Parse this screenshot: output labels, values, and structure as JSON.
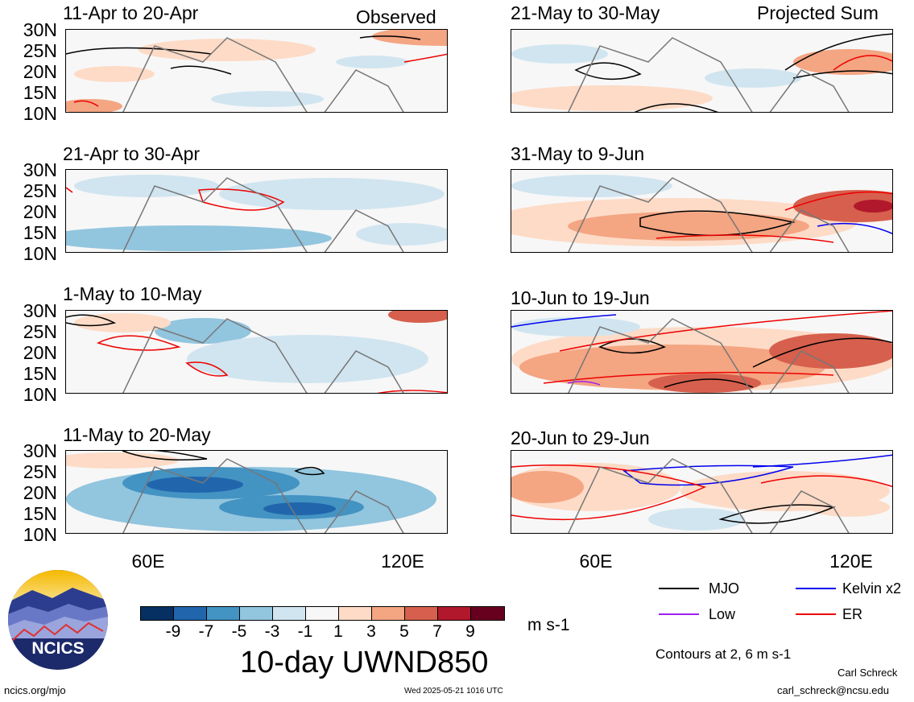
{
  "figure": {
    "title": "10-day UWND850",
    "observed_label": "Observed",
    "projected_label": "Projected Sum",
    "units": "m s-1",
    "contour_note": "Contours at 2, 6 m s-1"
  },
  "panels_left": [
    {
      "title": "11-Apr to 20-Apr"
    },
    {
      "title": "21-Apr to 30-Apr"
    },
    {
      "title": "1-May to 10-May"
    },
    {
      "title": "11-May to 20-May"
    }
  ],
  "panels_right": [
    {
      "title": "21-May to 30-May"
    },
    {
      "title": "31-May to 9-Jun"
    },
    {
      "title": "10-Jun to 19-Jun"
    },
    {
      "title": "20-Jun to 29-Jun"
    }
  ],
  "axes": {
    "lat_ticks": [
      "30N",
      "25N",
      "20N",
      "15N",
      "10N"
    ],
    "lon_ticks": [
      "60E",
      "120E"
    ]
  },
  "colorbar": {
    "tick_labels": [
      "-9",
      "-7",
      "-5",
      "-3",
      "-1",
      "1",
      "3",
      "5",
      "7",
      "9"
    ],
    "colors": [
      "#053061",
      "#2166ac",
      "#4393c3",
      "#92c5de",
      "#d1e5f0",
      "#f7f7f7",
      "#fddbc7",
      "#f4a582",
      "#d6604d",
      "#b2182b",
      "#67001f"
    ]
  },
  "legend": {
    "items": [
      {
        "label": "MJO",
        "color": "#000000"
      },
      {
        "label": "Kelvin x2",
        "color": "#0000ee"
      },
      {
        "label": "Low",
        "color": "#a020f0"
      },
      {
        "label": "ER",
        "color": "#ee0000"
      }
    ]
  },
  "logo": {
    "text": "NCICS"
  },
  "footer": {
    "url": "ncics.org/mjo",
    "timestamp": "Wed 2025-05-21 1016 UTC",
    "author": "Carl Schreck",
    "email": "carl_schreck@ncsu.edu"
  }
}
